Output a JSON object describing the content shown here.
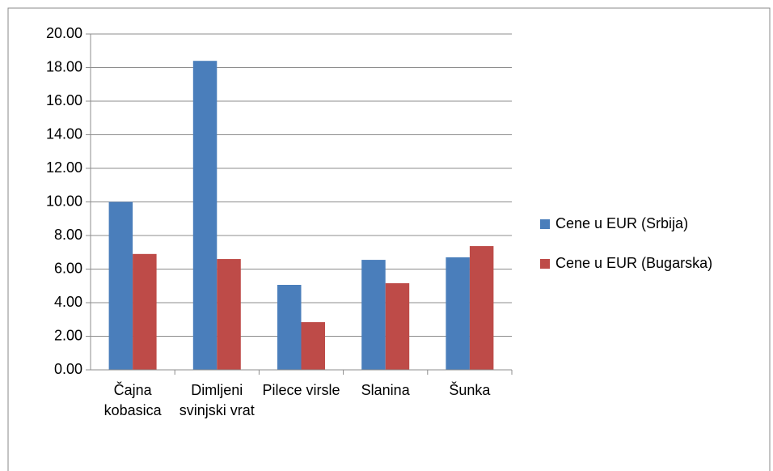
{
  "chart_data": {
    "type": "bar",
    "categories": [
      "Čajna kobasica",
      "Dimljeni svinjski vrat",
      "Pilece virsle",
      "Slanina",
      "Šunka"
    ],
    "series": [
      {
        "name": "Cene u EUR (Srbija)",
        "color": "#4a7ebb",
        "values": [
          10.0,
          18.4,
          5.06,
          6.55,
          6.7
        ]
      },
      {
        "name": "Cene u EUR (Bugarska)",
        "color": "#be4b48",
        "values": [
          6.9,
          6.6,
          2.84,
          5.16,
          7.37
        ]
      }
    ],
    "ylim": [
      0,
      20
    ],
    "yticks": [
      {
        "value": 0,
        "label": "0.00"
      },
      {
        "value": 2,
        "label": "2.00"
      },
      {
        "value": 4,
        "label": "4.00"
      },
      {
        "value": 6,
        "label": "6.00"
      },
      {
        "value": 8,
        "label": "8.00"
      },
      {
        "value": 10,
        "label": "10.00"
      },
      {
        "value": 12,
        "label": "12.00"
      },
      {
        "value": 14,
        "label": "14.00"
      },
      {
        "value": 16,
        "label": "16.00"
      },
      {
        "value": 18,
        "label": "18.00"
      },
      {
        "value": 20,
        "label": "20.00"
      }
    ],
    "grid": true,
    "legend": "right"
  }
}
